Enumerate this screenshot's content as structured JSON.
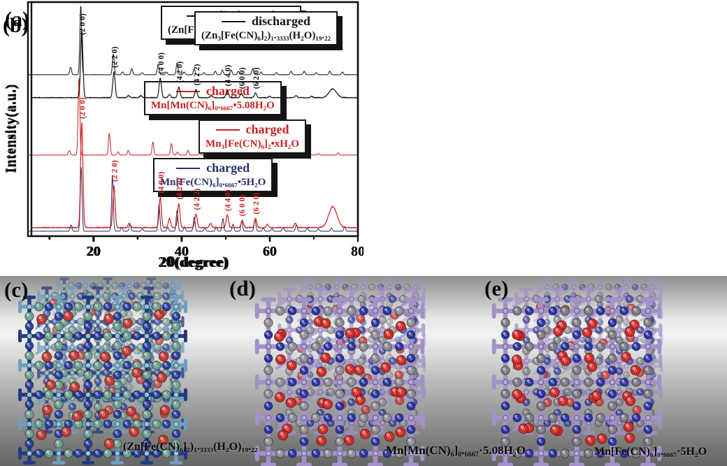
{
  "figure": {
    "panel_a_label": "(a)",
    "panel_b_label": "(b)"
  },
  "chart_data": [
    {
      "type": "line",
      "panel": "a",
      "title": "",
      "xlabel": "2θ(degree)",
      "ylabel": "Intensity(a.u.)",
      "xlim": [
        5,
        80
      ],
      "xticks": [
        20,
        40,
        60,
        80
      ],
      "grid": false,
      "legend_position": "inside boxed, one per trace",
      "layout": "three stacked powder-XRD traces, intensity in arbitrary units",
      "series": [
        {
          "name": "discharged",
          "formula": "(Zn[Fe(CN)₆]₂)₁.₃₃₃₃(H₂O)₁₉.₂₂",
          "color": "#141414",
          "peaks": [
            [
              14.7,
              0.11
            ],
            [
              17.0,
              1.0
            ],
            [
              24.4,
              0.3
            ],
            [
              26.5,
              0.04
            ],
            [
              28.6,
              0.09
            ],
            [
              31.0,
              0.03
            ],
            [
              34.6,
              0.15
            ],
            [
              36.5,
              0.04
            ],
            [
              38.9,
              0.17
            ],
            [
              40.5,
              0.04
            ],
            [
              42.8,
              0.08
            ],
            [
              45.0,
              0.03
            ],
            [
              47.6,
              0.05
            ],
            [
              49.2,
              0.07
            ],
            [
              51.2,
              0.07
            ],
            [
              52.8,
              0.05
            ],
            [
              56.1,
              0.09
            ],
            [
              58.0,
              0.04
            ],
            [
              61.5,
              0.03
            ],
            [
              64.8,
              0.05
            ],
            [
              67.8,
              0.05
            ],
            [
              70.5,
              0.03
            ],
            [
              73.6,
              0.05
            ],
            [
              76.5,
              0.04
            ]
          ]
        },
        {
          "name": "charged",
          "formula": "Mn[Mn(CN)₆]₀.₆₆₆₇•5.08H₂O",
          "color": "#c7221f",
          "peaks": [
            [
              14.4,
              0.06
            ],
            [
              16.6,
              1.0
            ],
            [
              23.5,
              0.28
            ],
            [
              25.5,
              0.04
            ],
            [
              27.8,
              0.06
            ],
            [
              33.4,
              0.17
            ],
            [
              37.6,
              0.15
            ],
            [
              39.0,
              0.04
            ],
            [
              41.4,
              0.06
            ],
            [
              44.0,
              0.03
            ],
            [
              47.4,
              0.05
            ],
            [
              49.3,
              0.06
            ],
            [
              51.6,
              0.05
            ],
            [
              53.0,
              0.03
            ],
            [
              55.2,
              0.04
            ],
            [
              58.2,
              0.03
            ],
            [
              62.0,
              0.03
            ],
            [
              65.0,
              0.03
            ],
            [
              68.0,
              0.03
            ],
            [
              71.0,
              0.02
            ],
            [
              75.5,
              0.03
            ]
          ]
        },
        {
          "name": "charged",
          "formula": "Mn[Fe(CN)₆]₀.₆₆₆₇•5H₂O",
          "color": "#27306b",
          "peaks": [
            [
              14.8,
              0.1
            ],
            [
              17.1,
              1.0
            ],
            [
              24.2,
              0.88
            ],
            [
              26.3,
              0.06
            ],
            [
              28.2,
              0.11
            ],
            [
              31.0,
              0.04
            ],
            [
              34.8,
              0.42
            ],
            [
              36.8,
              0.06
            ],
            [
              38.9,
              0.33
            ],
            [
              40.6,
              0.07
            ],
            [
              42.8,
              0.22
            ],
            [
              45.2,
              0.05
            ],
            [
              47.8,
              0.07
            ],
            [
              49.3,
              0.2
            ],
            [
              51.6,
              0.11
            ],
            [
              53.6,
              0.16
            ],
            [
              56.6,
              0.18
            ],
            [
              58.5,
              0.05
            ],
            [
              60.5,
              0.04
            ],
            [
              63.0,
              0.06
            ],
            [
              66.0,
              0.1
            ],
            [
              68.5,
              0.05
            ],
            [
              71.0,
              0.04
            ],
            [
              74.0,
              0.05
            ],
            [
              77.0,
              0.07
            ]
          ]
        }
      ]
    },
    {
      "type": "line",
      "panel": "b",
      "title": "",
      "xlabel": "2θ(degree)",
      "ylabel": "Intensity(a.u.)",
      "xlim": [
        6,
        80
      ],
      "xticks": [
        20,
        40,
        60,
        80
      ],
      "grid": false,
      "legend_position": "inside boxed, one per trace",
      "layout": "two stacked powder-XRD traces with Miller index labels",
      "miller_indices": [
        {
          "hkl": "(2 0 0)",
          "x": 17.4
        },
        {
          "hkl": "(2 2 0)",
          "x": 24.7
        },
        {
          "hkl": "(4 0 0)",
          "x": 35.2
        },
        {
          "hkl": "(4 2 0)",
          "x": 39.4
        },
        {
          "hkl": "(4 2 2)",
          "x": 43.3
        },
        {
          "hkl": "(4 4 0)",
          "x": 50.4
        },
        {
          "hkl": "(6 0 0)",
          "x": 53.6
        },
        {
          "hkl": "(6 2 0)",
          "x": 56.8
        }
      ],
      "series": [
        {
          "name": "discharged",
          "formula": "(Zn₃[Fe(CN)₆]₂)₁.₃₃₃₃(H₂O)₁₉.₂₂",
          "color": "#141414",
          "peaks": [
            [
              17.4,
              1.0
            ],
            [
              24.7,
              0.38
            ],
            [
              28.0,
              0.03
            ],
            [
              30.8,
              0.03
            ],
            [
              35.2,
              0.29
            ],
            [
              37.3,
              0.05
            ],
            [
              39.4,
              0.16
            ],
            [
              43.3,
              0.12
            ],
            [
              46.8,
              0.03
            ],
            [
              50.4,
              0.11
            ],
            [
              53.6,
              0.07
            ],
            [
              56.8,
              0.07
            ],
            [
              60.0,
              0.02
            ],
            [
              66.0,
              0.03
            ],
            [
              69.5,
              0.02
            ],
            [
              74.3,
              0.13,
              3.2
            ]
          ]
        },
        {
          "name": "charged",
          "formula": "Mn₃[Fe(CN)₆]₂•xH₂O",
          "color": "#cd1f1f",
          "peaks": [
            [
              17.4,
              1.0
            ],
            [
              24.7,
              0.4
            ],
            [
              28.2,
              0.04
            ],
            [
              35.2,
              0.29
            ],
            [
              37.3,
              0.09
            ],
            [
              39.4,
              0.23
            ],
            [
              43.3,
              0.13
            ],
            [
              46.6,
              0.04
            ],
            [
              50.4,
              0.12
            ],
            [
              53.8,
              0.07
            ],
            [
              56.8,
              0.09
            ],
            [
              59.5,
              0.03
            ],
            [
              65.8,
              0.04
            ],
            [
              74.3,
              0.2,
              3.6
            ]
          ]
        }
      ]
    }
  ],
  "structures": {
    "c": {
      "label": "(c)",
      "caption": "(Zn[Fe(CN)₆]₂)₁.₃₃₃₃(H₂O)₁₉.₂₂",
      "colors": {
        "rod": "#6f9fc0",
        "rod2": "#223a80",
        "carbon": "#6f9e8e",
        "nitrogen": "#2b3f9a",
        "water": "#c03a33",
        "node": "#8fc6d6"
      }
    },
    "d": {
      "label": "(d)",
      "caption": "Mn[Mn(CN)₆]₀.₆₆₆₇·5.08H₂O",
      "colors": {
        "rod": "#a391c8",
        "rod2": "#a391c8",
        "carbon": "#8d8d93",
        "nitrogen": "#2a35a2",
        "water": "#cf2b27",
        "node": "#b7a7d8"
      }
    },
    "e": {
      "label": "(e)",
      "caption": "Mn[Fe(CN)₆]₀.₆₆₆₇·5H₂O",
      "colors": {
        "rod": "#a391c8",
        "rod2": "#a391c8",
        "carbon": "#7c7c83",
        "nitrogen": "#2a35a2",
        "water": "#cf2b27",
        "node": "#b7a7d8"
      }
    }
  },
  "atom_letters": {
    "carbon": "C",
    "nitrogen": "N",
    "water": "O"
  }
}
